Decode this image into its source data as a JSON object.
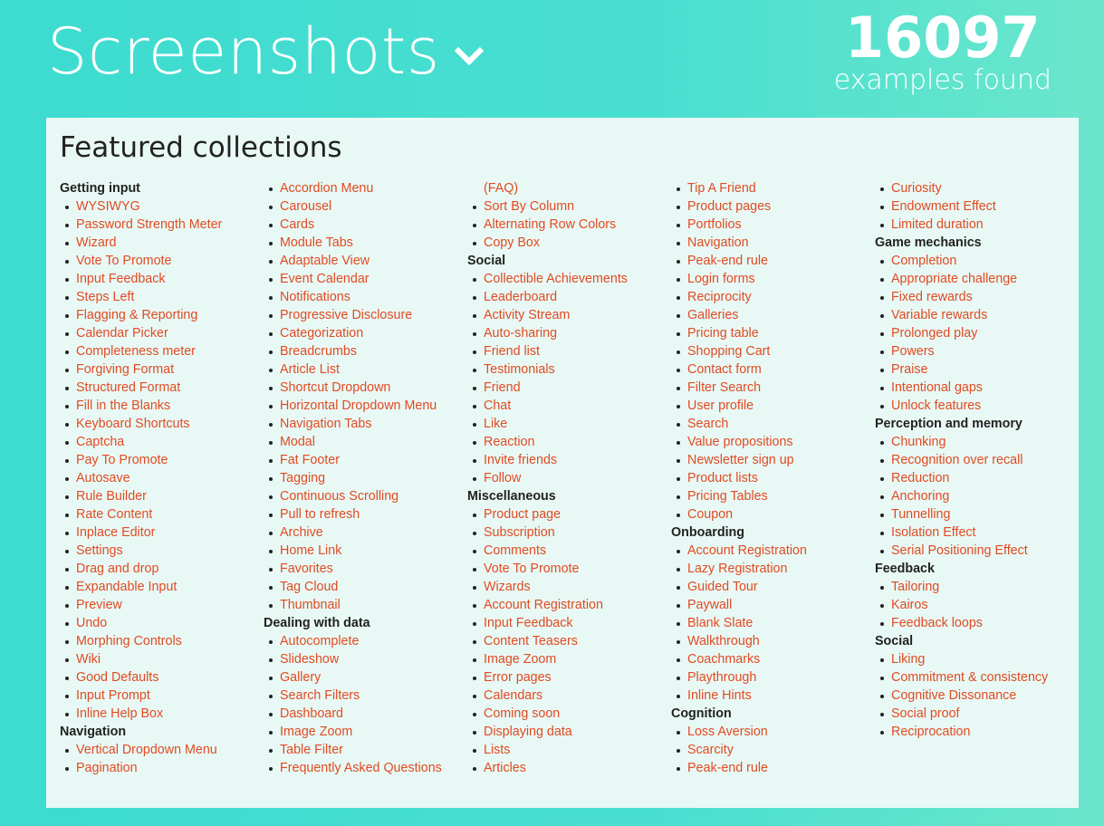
{
  "header": {
    "title": "Screenshots",
    "count": "16097",
    "count_label": "examples found"
  },
  "panel": {
    "title": "Featured collections"
  },
  "columns": [
    [
      {
        "t": "cat",
        "v": "Getting input"
      },
      {
        "t": "item",
        "v": "WYSIWYG"
      },
      {
        "t": "item",
        "v": "Password Strength Meter"
      },
      {
        "t": "item",
        "v": "Wizard"
      },
      {
        "t": "item",
        "v": "Vote To Promote"
      },
      {
        "t": "item",
        "v": "Input Feedback"
      },
      {
        "t": "item",
        "v": "Steps Left"
      },
      {
        "t": "item",
        "v": "Flagging & Reporting"
      },
      {
        "t": "item",
        "v": "Calendar Picker"
      },
      {
        "t": "item",
        "v": "Completeness meter"
      },
      {
        "t": "item",
        "v": "Forgiving Format"
      },
      {
        "t": "item",
        "v": "Structured Format"
      },
      {
        "t": "item",
        "v": "Fill in the Blanks"
      },
      {
        "t": "item",
        "v": "Keyboard Shortcuts"
      },
      {
        "t": "item",
        "v": "Captcha"
      },
      {
        "t": "item",
        "v": "Pay To Promote"
      },
      {
        "t": "item",
        "v": "Autosave"
      },
      {
        "t": "item",
        "v": "Rule Builder"
      },
      {
        "t": "item",
        "v": "Rate Content"
      },
      {
        "t": "item",
        "v": "Inplace Editor"
      },
      {
        "t": "item",
        "v": "Settings"
      },
      {
        "t": "item",
        "v": "Drag and drop"
      },
      {
        "t": "item",
        "v": "Expandable Input"
      },
      {
        "t": "item",
        "v": "Preview"
      },
      {
        "t": "item",
        "v": "Undo"
      },
      {
        "t": "item",
        "v": "Morphing Controls"
      },
      {
        "t": "item",
        "v": "Wiki"
      },
      {
        "t": "item",
        "v": "Good Defaults"
      },
      {
        "t": "item",
        "v": "Input Prompt"
      },
      {
        "t": "item",
        "v": "Inline Help Box"
      },
      {
        "t": "cat",
        "v": "Navigation"
      },
      {
        "t": "item",
        "v": "Vertical Dropdown Menu"
      },
      {
        "t": "item",
        "v": "Pagination"
      }
    ],
    [
      {
        "t": "item",
        "v": "Accordion Menu"
      },
      {
        "t": "item",
        "v": "Carousel"
      },
      {
        "t": "item",
        "v": "Cards"
      },
      {
        "t": "item",
        "v": "Module Tabs"
      },
      {
        "t": "item",
        "v": "Adaptable View"
      },
      {
        "t": "item",
        "v": "Event Calendar"
      },
      {
        "t": "item",
        "v": "Notifications"
      },
      {
        "t": "item",
        "v": "Progressive Disclosure"
      },
      {
        "t": "item",
        "v": "Categorization"
      },
      {
        "t": "item",
        "v": "Breadcrumbs"
      },
      {
        "t": "item",
        "v": "Article List"
      },
      {
        "t": "item",
        "v": "Shortcut Dropdown"
      },
      {
        "t": "item",
        "v": "Horizontal Dropdown Menu"
      },
      {
        "t": "item",
        "v": "Navigation Tabs"
      },
      {
        "t": "item",
        "v": "Modal"
      },
      {
        "t": "item",
        "v": "Fat Footer"
      },
      {
        "t": "item",
        "v": "Tagging"
      },
      {
        "t": "item",
        "v": "Continuous Scrolling"
      },
      {
        "t": "item",
        "v": "Pull to refresh"
      },
      {
        "t": "item",
        "v": "Archive"
      },
      {
        "t": "item",
        "v": "Home Link"
      },
      {
        "t": "item",
        "v": "Favorites"
      },
      {
        "t": "item",
        "v": "Tag Cloud"
      },
      {
        "t": "item",
        "v": "Thumbnail"
      },
      {
        "t": "cat",
        "v": "Dealing with data"
      },
      {
        "t": "item",
        "v": "Autocomplete"
      },
      {
        "t": "item",
        "v": "Slideshow"
      },
      {
        "t": "item",
        "v": "Gallery"
      },
      {
        "t": "item",
        "v": "Search Filters"
      },
      {
        "t": "item",
        "v": "Dashboard"
      },
      {
        "t": "item",
        "v": "Image Zoom"
      },
      {
        "t": "item",
        "v": "Table Filter"
      },
      {
        "t": "item",
        "v": "Frequently Asked Questions"
      }
    ],
    [
      {
        "t": "cont",
        "v": "(FAQ)"
      },
      {
        "t": "item",
        "v": "Sort By Column"
      },
      {
        "t": "item",
        "v": "Alternating Row Colors"
      },
      {
        "t": "item",
        "v": "Copy Box"
      },
      {
        "t": "cat",
        "v": "Social"
      },
      {
        "t": "item",
        "v": "Collectible Achievements"
      },
      {
        "t": "item",
        "v": "Leaderboard"
      },
      {
        "t": "item",
        "v": "Activity Stream"
      },
      {
        "t": "item",
        "v": "Auto-sharing"
      },
      {
        "t": "item",
        "v": "Friend list"
      },
      {
        "t": "item",
        "v": "Testimonials"
      },
      {
        "t": "item",
        "v": "Friend"
      },
      {
        "t": "item",
        "v": "Chat"
      },
      {
        "t": "item",
        "v": "Like"
      },
      {
        "t": "item",
        "v": "Reaction"
      },
      {
        "t": "item",
        "v": "Invite friends"
      },
      {
        "t": "item",
        "v": "Follow"
      },
      {
        "t": "cat",
        "v": "Miscellaneous"
      },
      {
        "t": "item",
        "v": "Product page"
      },
      {
        "t": "item",
        "v": "Subscription"
      },
      {
        "t": "item",
        "v": "Comments"
      },
      {
        "t": "item",
        "v": "Vote To Promote"
      },
      {
        "t": "item",
        "v": "Wizards"
      },
      {
        "t": "item",
        "v": "Account Registration"
      },
      {
        "t": "item",
        "v": "Input Feedback"
      },
      {
        "t": "item",
        "v": "Content Teasers"
      },
      {
        "t": "item",
        "v": "Image Zoom"
      },
      {
        "t": "item",
        "v": "Error pages"
      },
      {
        "t": "item",
        "v": "Calendars"
      },
      {
        "t": "item",
        "v": "Coming soon"
      },
      {
        "t": "item",
        "v": "Displaying data"
      },
      {
        "t": "item",
        "v": "Lists"
      },
      {
        "t": "item",
        "v": "Articles"
      }
    ],
    [
      {
        "t": "item",
        "v": "Tip A Friend"
      },
      {
        "t": "item",
        "v": "Product pages"
      },
      {
        "t": "item",
        "v": "Portfolios"
      },
      {
        "t": "item",
        "v": "Navigation"
      },
      {
        "t": "item",
        "v": "Peak-end rule"
      },
      {
        "t": "item",
        "v": "Login forms"
      },
      {
        "t": "item",
        "v": "Reciprocity"
      },
      {
        "t": "item",
        "v": "Galleries"
      },
      {
        "t": "item",
        "v": "Pricing table"
      },
      {
        "t": "item",
        "v": "Shopping Cart"
      },
      {
        "t": "item",
        "v": "Contact form"
      },
      {
        "t": "item",
        "v": "Filter Search"
      },
      {
        "t": "item",
        "v": "User profile"
      },
      {
        "t": "item",
        "v": "Search"
      },
      {
        "t": "item",
        "v": "Value propositions"
      },
      {
        "t": "item",
        "v": "Newsletter sign up"
      },
      {
        "t": "item",
        "v": "Product lists"
      },
      {
        "t": "item",
        "v": "Pricing Tables"
      },
      {
        "t": "item",
        "v": "Coupon"
      },
      {
        "t": "cat",
        "v": "Onboarding"
      },
      {
        "t": "item",
        "v": "Account Registration"
      },
      {
        "t": "item",
        "v": "Lazy Registration"
      },
      {
        "t": "item",
        "v": "Guided Tour"
      },
      {
        "t": "item",
        "v": "Paywall"
      },
      {
        "t": "item",
        "v": "Blank Slate"
      },
      {
        "t": "item",
        "v": "Walkthrough"
      },
      {
        "t": "item",
        "v": "Coachmarks"
      },
      {
        "t": "item",
        "v": "Playthrough"
      },
      {
        "t": "item",
        "v": "Inline Hints"
      },
      {
        "t": "cat",
        "v": "Cognition"
      },
      {
        "t": "item",
        "v": "Loss Aversion"
      },
      {
        "t": "item",
        "v": "Scarcity"
      },
      {
        "t": "item",
        "v": "Peak-end rule"
      }
    ],
    [
      {
        "t": "item",
        "v": "Curiosity"
      },
      {
        "t": "item",
        "v": "Endowment Effect"
      },
      {
        "t": "item",
        "v": "Limited duration"
      },
      {
        "t": "cat",
        "v": "Game mechanics"
      },
      {
        "t": "item",
        "v": "Completion"
      },
      {
        "t": "item",
        "v": "Appropriate challenge"
      },
      {
        "t": "item",
        "v": "Fixed rewards"
      },
      {
        "t": "item",
        "v": "Variable rewards"
      },
      {
        "t": "item",
        "v": "Prolonged play"
      },
      {
        "t": "item",
        "v": "Powers"
      },
      {
        "t": "item",
        "v": "Praise"
      },
      {
        "t": "item",
        "v": "Intentional gaps"
      },
      {
        "t": "item",
        "v": "Unlock features"
      },
      {
        "t": "cat",
        "v": "Perception and memory"
      },
      {
        "t": "item",
        "v": "Chunking"
      },
      {
        "t": "item",
        "v": "Recognition over recall"
      },
      {
        "t": "item",
        "v": "Reduction"
      },
      {
        "t": "item",
        "v": "Anchoring"
      },
      {
        "t": "item",
        "v": "Tunnelling"
      },
      {
        "t": "item",
        "v": "Isolation Effect"
      },
      {
        "t": "item",
        "v": "Serial Positioning Effect"
      },
      {
        "t": "cat",
        "v": "Feedback"
      },
      {
        "t": "item",
        "v": "Tailoring"
      },
      {
        "t": "item",
        "v": "Kairos"
      },
      {
        "t": "item",
        "v": "Feedback loops"
      },
      {
        "t": "cat",
        "v": "Social"
      },
      {
        "t": "item",
        "v": "Liking"
      },
      {
        "t": "item",
        "v": "Commitment & consistency"
      },
      {
        "t": "item",
        "v": "Cognitive Dissonance"
      },
      {
        "t": "item",
        "v": "Social proof"
      },
      {
        "t": "item",
        "v": "Reciprocation"
      }
    ]
  ]
}
